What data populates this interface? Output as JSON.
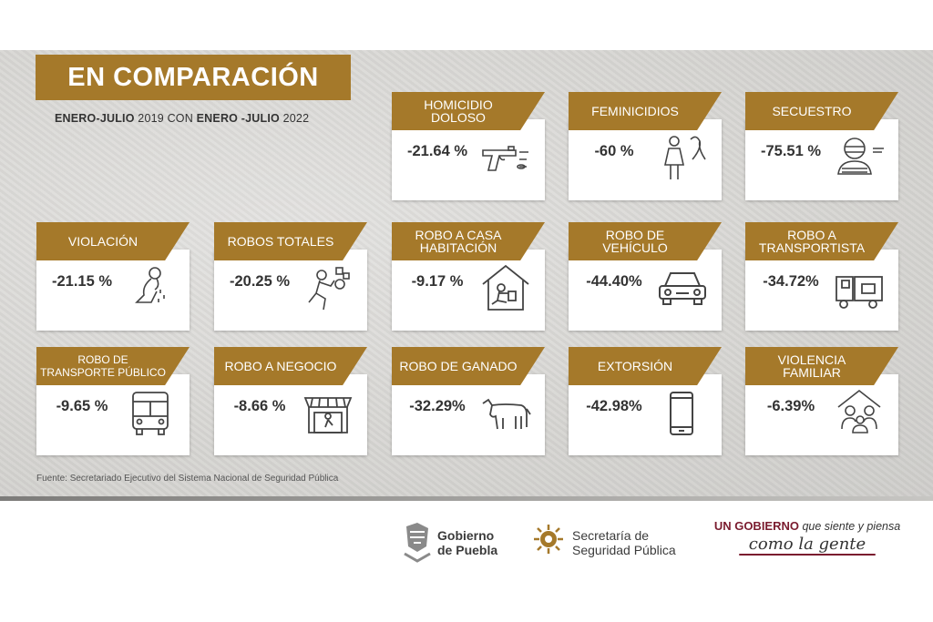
{
  "title": "EN COMPARACIÓN",
  "subtitle": {
    "p1": "ENERO-JULIO",
    "p2": " 2019 CON ",
    "p3": "ENERO -JULIO",
    "p4": " 2022"
  },
  "cards": [
    {
      "label": "HOMICIDIO DOLOSO",
      "value": "-21.64 %",
      "icon": "gun-icon"
    },
    {
      "label": "FEMINICIDIOS",
      "value": "-60 %",
      "icon": "woman-ribbon-icon"
    },
    {
      "label": "SECUESTRO",
      "value": "-75.51 %",
      "icon": "hostage-icon"
    },
    {
      "label": "VIOLACIÓN",
      "value": "-21.15 %",
      "icon": "crying-person-icon"
    },
    {
      "label": "ROBOS TOTALES",
      "value": "-20.25 %",
      "icon": "thief-running-icon"
    },
    {
      "label": "ROBO A CASA HABITACIÓN",
      "value": "-9.17 %",
      "icon": "house-burglary-icon"
    },
    {
      "label": "ROBO DE VEHÍCULO",
      "value": "-44.40%",
      "icon": "car-icon"
    },
    {
      "label": "ROBO A TRANSPORTISTA",
      "value": "-34.72%",
      "icon": "truck-icon"
    },
    {
      "label": "ROBO DE TRANSPORTE PÚBLICO",
      "value": "-9.65 %",
      "icon": "bus-icon"
    },
    {
      "label": "ROBO A NEGOCIO",
      "value": "-8.66 %",
      "icon": "store-icon"
    },
    {
      "label": "ROBO DE GANADO",
      "value": "-32.29%",
      "icon": "cow-icon"
    },
    {
      "label": "EXTORSIÓN",
      "value": "-42.98%",
      "icon": "phone-icon"
    },
    {
      "label": "VIOLENCIA FAMILIAR",
      "value": "-6.39%",
      "icon": "family-house-icon"
    }
  ],
  "source": "Fuente: Secretariado Ejecutivo del  Sistema Nacional de Seguridad Pública",
  "footer": {
    "puebla_line1": "Gobierno",
    "puebla_line2": "de Puebla",
    "ssp_line1": "Secretaría de",
    "ssp_line2": "Seguridad Pública",
    "slogan_bold": "UN GOBIERNO",
    "slogan_rest": " que siente y piensa",
    "slogan_line2": "como la gente"
  },
  "colors": {
    "accent": "#a5792a",
    "slogan": "#7a1b2e"
  }
}
